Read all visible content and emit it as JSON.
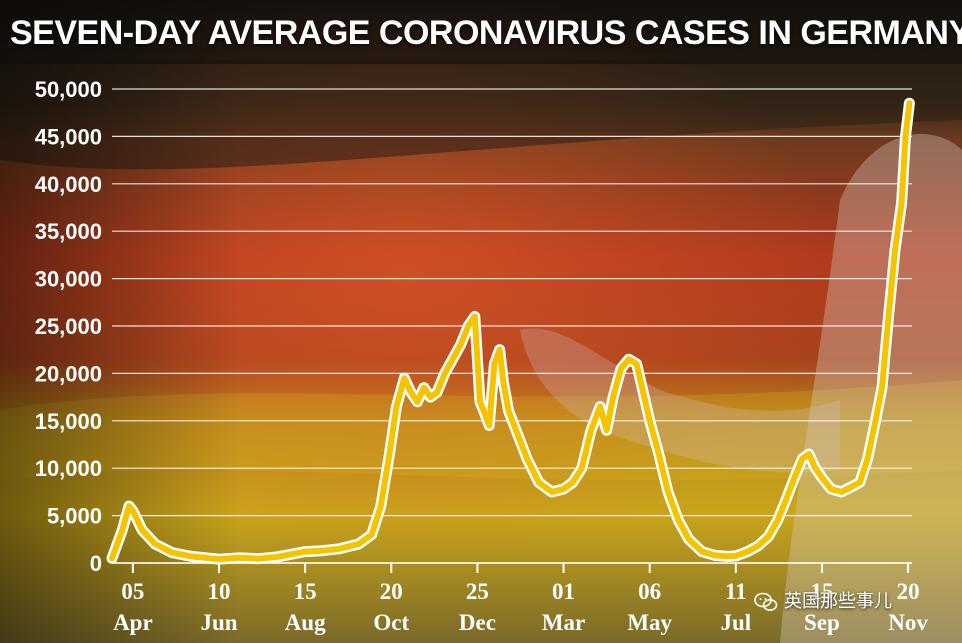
{
  "header": {
    "title": "SEVEN-DAY AVERAGE CORONAVIRUS CASES IN GERMANY"
  },
  "watermark": {
    "text": "英国那些事儿",
    "icon": "wechat-icon"
  },
  "colors": {
    "line": "#f5c400",
    "line_outline": "#ffffff",
    "grid": "#ffffff",
    "text": "#ffffff",
    "flag_black": "#1b1511",
    "flag_red": "#c0391c",
    "flag_gold": "#caa418"
  },
  "chart_data": {
    "type": "line",
    "title": "SEVEN-DAY AVERAGE CORONAVIRUS CASES IN GERMANY",
    "xlabel": "",
    "ylabel": "",
    "ylim": [
      0,
      50000
    ],
    "yticks": [
      0,
      5000,
      10000,
      15000,
      20000,
      25000,
      30000,
      35000,
      40000,
      45000,
      50000
    ],
    "ytick_labels": [
      "0",
      "5,000",
      "10,000",
      "15,000",
      "20,000",
      "25,000",
      "30,000",
      "35,000",
      "40,000",
      "45,000",
      "50,000"
    ],
    "xlim": [
      "2020-03-20",
      "2021-11-23"
    ],
    "xticks": [
      {
        "date": "2020-04-05",
        "day": "05",
        "month": "Apr"
      },
      {
        "date": "2020-06-10",
        "day": "10",
        "month": "Jun"
      },
      {
        "date": "2020-08-15",
        "day": "15",
        "month": "Aug"
      },
      {
        "date": "2020-10-20",
        "day": "20",
        "month": "Oct"
      },
      {
        "date": "2020-12-25",
        "day": "25",
        "month": "Dec"
      },
      {
        "date": "2021-03-01",
        "day": "01",
        "month": "Mar"
      },
      {
        "date": "2021-05-06",
        "day": "06",
        "month": "May"
      },
      {
        "date": "2021-07-11",
        "day": "11",
        "month": "Jul"
      },
      {
        "date": "2021-09-15",
        "day": "15",
        "month": "Sep"
      },
      {
        "date": "2021-11-20",
        "day": "20",
        "month": "Nov"
      }
    ],
    "grid": true,
    "series": [
      {
        "color": "#f5c400",
        "points": [
          [
            "2020-03-20",
            500
          ],
          [
            "2020-03-28",
            3500
          ],
          [
            "2020-04-02",
            6000
          ],
          [
            "2020-04-05",
            5500
          ],
          [
            "2020-04-12",
            3500
          ],
          [
            "2020-04-22",
            2000
          ],
          [
            "2020-05-05",
            1100
          ],
          [
            "2020-05-20",
            700
          ],
          [
            "2020-06-10",
            400
          ],
          [
            "2020-06-25",
            550
          ],
          [
            "2020-07-10",
            450
          ],
          [
            "2020-07-25",
            650
          ],
          [
            "2020-08-15",
            1200
          ],
          [
            "2020-08-28",
            1300
          ],
          [
            "2020-09-10",
            1500
          ],
          [
            "2020-09-25",
            2000
          ],
          [
            "2020-10-05",
            3000
          ],
          [
            "2020-10-12",
            6000
          ],
          [
            "2020-10-18",
            11000
          ],
          [
            "2020-10-24",
            16500
          ],
          [
            "2020-10-30",
            19500
          ],
          [
            "2020-11-04",
            18000
          ],
          [
            "2020-11-09",
            17000
          ],
          [
            "2020-11-14",
            18500
          ],
          [
            "2020-11-19",
            17500
          ],
          [
            "2020-11-24",
            18000
          ],
          [
            "2020-11-30",
            20000
          ],
          [
            "2020-12-06",
            21500
          ],
          [
            "2020-12-12",
            23000
          ],
          [
            "2020-12-18",
            25000
          ],
          [
            "2020-12-23",
            26000
          ],
          [
            "2020-12-27",
            17000
          ],
          [
            "2020-12-30",
            16000
          ],
          [
            "2021-01-03",
            14500
          ],
          [
            "2021-01-07",
            21000
          ],
          [
            "2021-01-11",
            22500
          ],
          [
            "2021-01-14",
            19000
          ],
          [
            "2021-01-18",
            16000
          ],
          [
            "2021-01-25",
            13500
          ],
          [
            "2021-02-01",
            11000
          ],
          [
            "2021-02-10",
            8500
          ],
          [
            "2021-02-20",
            7500
          ],
          [
            "2021-03-01",
            7800
          ],
          [
            "2021-03-08",
            8500
          ],
          [
            "2021-03-15",
            10000
          ],
          [
            "2021-03-22",
            14000
          ],
          [
            "2021-03-29",
            16500
          ],
          [
            "2021-04-03",
            14000
          ],
          [
            "2021-04-08",
            17500
          ],
          [
            "2021-04-14",
            20500
          ],
          [
            "2021-04-20",
            21500
          ],
          [
            "2021-04-26",
            21000
          ],
          [
            "2021-05-01",
            18000
          ],
          [
            "2021-05-06",
            15000
          ],
          [
            "2021-05-13",
            11500
          ],
          [
            "2021-05-20",
            7500
          ],
          [
            "2021-05-28",
            4500
          ],
          [
            "2021-06-05",
            2500
          ],
          [
            "2021-06-15",
            1200
          ],
          [
            "2021-06-25",
            800
          ],
          [
            "2021-07-05",
            700
          ],
          [
            "2021-07-11",
            750
          ],
          [
            "2021-07-20",
            1200
          ],
          [
            "2021-07-28",
            1800
          ],
          [
            "2021-08-05",
            2800
          ],
          [
            "2021-08-12",
            4500
          ],
          [
            "2021-08-18",
            6500
          ],
          [
            "2021-08-25",
            9000
          ],
          [
            "2021-08-31",
            11000
          ],
          [
            "2021-09-05",
            11500
          ],
          [
            "2021-09-10",
            10000
          ],
          [
            "2021-09-15",
            9000
          ],
          [
            "2021-09-22",
            7800
          ],
          [
            "2021-09-30",
            7500
          ],
          [
            "2021-10-07",
            8000
          ],
          [
            "2021-10-14",
            8500
          ],
          [
            "2021-10-20",
            11000
          ],
          [
            "2021-10-26",
            15000
          ],
          [
            "2021-10-31",
            18500
          ],
          [
            "2021-11-05",
            26000
          ],
          [
            "2021-11-10",
            33000
          ],
          [
            "2021-11-15",
            38000
          ],
          [
            "2021-11-18",
            45000
          ],
          [
            "2021-11-21",
            48500
          ]
        ]
      }
    ]
  }
}
